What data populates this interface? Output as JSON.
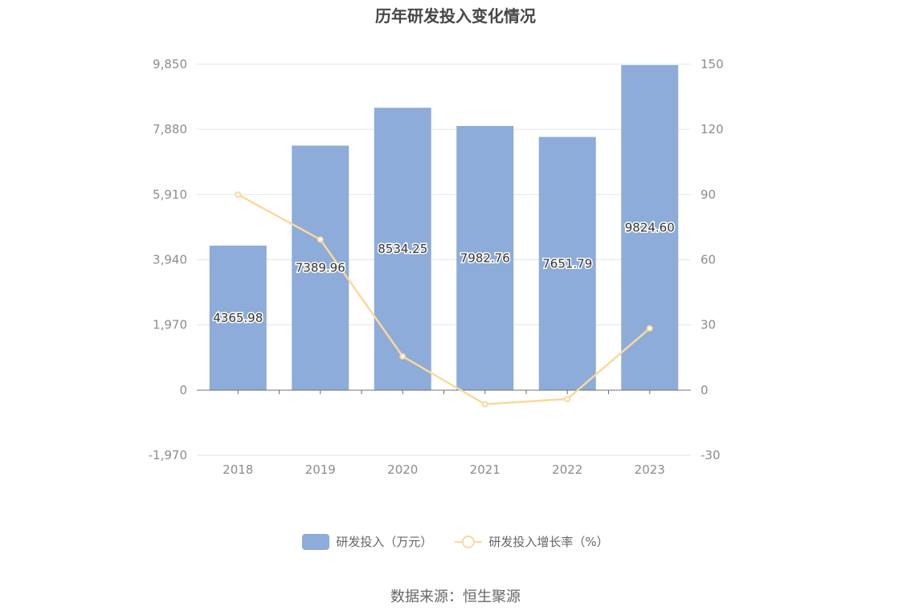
{
  "chart_data": {
    "type": "bar",
    "title": "历年研发投入变化情况",
    "categories": [
      "2018",
      "2019",
      "2020",
      "2021",
      "2022",
      "2023"
    ],
    "series": [
      {
        "name": "研发投入（万元）",
        "type": "bar",
        "axis": "left",
        "values": [
          4365.98,
          7389.96,
          8534.25,
          7982.76,
          7651.79,
          9824.6
        ],
        "labels": [
          "4365.98",
          "7389.96",
          "8534.25",
          "7982.76",
          "7651.79",
          "9824.60"
        ]
      },
      {
        "name": "研发投入增长率（%）",
        "type": "line",
        "axis": "right",
        "values": [
          90.0,
          69.3,
          15.5,
          -6.5,
          -4.1,
          28.4
        ]
      }
    ],
    "y_left": {
      "ticks": [
        "9,850",
        "7,880",
        "5,910",
        "3,940",
        "1,970",
        "0",
        "-1,970"
      ],
      "ylim": [
        -1970,
        9850
      ]
    },
    "y_right": {
      "ticks": [
        "150",
        "120",
        "90",
        "60",
        "30",
        "0",
        "-30"
      ],
      "ylim": [
        -30,
        150
      ]
    },
    "grid": true,
    "legend_position": "bottom",
    "colors": {
      "bar": "#8dacd9",
      "line": "#fbd89b",
      "grid": "#e0e6f1",
      "axis": "#6e7079"
    }
  },
  "source_note": "数据来源：恒生聚源"
}
